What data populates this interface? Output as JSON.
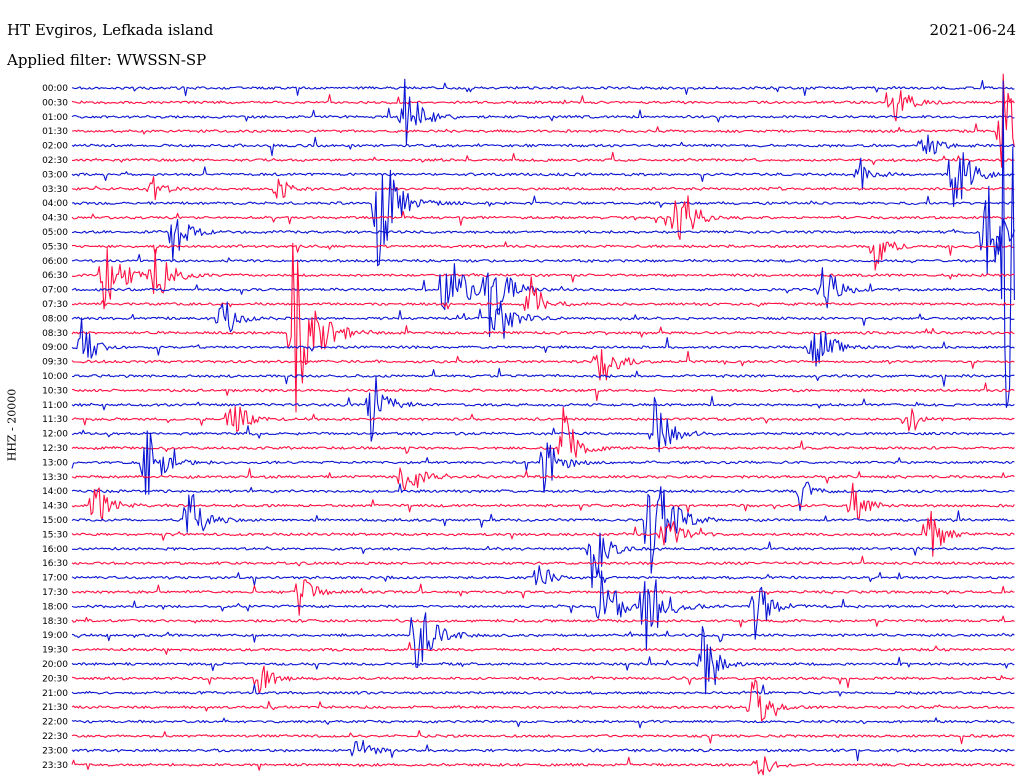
{
  "header": {
    "station": "HT Evgiros, Lefkada island",
    "date": "2021-06-24",
    "filter": "Applied filter: WWSSN-SP"
  },
  "colors": {
    "odd_trace": "#0a14d2",
    "even_trace": "#ff1042"
  },
  "chart_data": {
    "type": "line",
    "title": "HT Evgiros, Lefkada island",
    "ylabel": "HHZ - 20000",
    "xlabel": "",
    "rows": [
      "00:00",
      "00:30",
      "01:00",
      "01:30",
      "02:00",
      "02:30",
      "03:00",
      "03:30",
      "04:00",
      "04:30",
      "05:00",
      "05:30",
      "06:00",
      "06:30",
      "07:00",
      "07:30",
      "08:00",
      "08:30",
      "09:00",
      "09:30",
      "10:00",
      "10:30",
      "11:00",
      "11:30",
      "12:00",
      "12:30",
      "13:00",
      "13:30",
      "14:00",
      "14:30",
      "15:00",
      "15:30",
      "16:00",
      "16:30",
      "17:00",
      "17:30",
      "18:00",
      "18:30",
      "19:00",
      "19:30",
      "20:00",
      "20:30",
      "21:00",
      "21:30",
      "22:00",
      "22:30",
      "23:00",
      "23:30"
    ],
    "row_duration_minutes": 30,
    "series_colors": [
      "#0a14d2",
      "#ff1042"
    ],
    "events": [
      {
        "row": "00:30",
        "minute": 26.0,
        "amp": 0.8
      },
      {
        "row": "01:00",
        "minute": 10.5,
        "amp": 1.2
      },
      {
        "row": "01:30",
        "minute": 29.5,
        "amp": 1.8
      },
      {
        "row": "02:00",
        "minute": 27.0,
        "amp": 0.6
      },
      {
        "row": "03:00",
        "minute": 25.0,
        "amp": 0.5
      },
      {
        "row": "03:00",
        "minute": 28.0,
        "amp": 1.2
      },
      {
        "row": "03:30",
        "minute": 2.5,
        "amp": 0.4
      },
      {
        "row": "03:30",
        "minute": 6.5,
        "amp": 0.4
      },
      {
        "row": "04:00",
        "minute": 9.7,
        "amp": 1.8
      },
      {
        "row": "04:30",
        "minute": 19.2,
        "amp": 1.3
      },
      {
        "row": "05:00",
        "minute": 3.2,
        "amp": 0.8
      },
      {
        "row": "05:00",
        "minute": 29.0,
        "amp": 1.5
      },
      {
        "row": "05:30",
        "minute": 25.5,
        "amp": 0.6
      },
      {
        "row": "06:00",
        "minute": 29.5,
        "amp": 5.0
      },
      {
        "row": "06:30",
        "minute": 1.0,
        "amp": 1.3
      },
      {
        "row": "06:30",
        "minute": 2.5,
        "amp": 1.2
      },
      {
        "row": "07:00",
        "minute": 11.8,
        "amp": 1.5
      },
      {
        "row": "07:00",
        "minute": 13.2,
        "amp": 1.4
      },
      {
        "row": "07:00",
        "minute": 23.8,
        "amp": 1.0
      },
      {
        "row": "07:30",
        "minute": 14.5,
        "amp": 0.8
      },
      {
        "row": "08:00",
        "minute": 4.7,
        "amp": 0.8
      },
      {
        "row": "08:00",
        "minute": 13.5,
        "amp": 1.0
      },
      {
        "row": "08:30",
        "minute": 7.0,
        "amp": 2.5
      },
      {
        "row": "09:00",
        "minute": 0.3,
        "amp": 0.7
      },
      {
        "row": "09:00",
        "minute": 23.5,
        "amp": 1.2
      },
      {
        "row": "09:30",
        "minute": 16.7,
        "amp": 1.0
      },
      {
        "row": "11:00",
        "minute": 9.5,
        "amp": 1.0
      },
      {
        "row": "11:30",
        "minute": 5.0,
        "amp": 0.8
      },
      {
        "row": "11:30",
        "minute": 26.5,
        "amp": 0.6
      },
      {
        "row": "12:00",
        "minute": 18.5,
        "amp": 1.0
      },
      {
        "row": "12:30",
        "minute": 15.6,
        "amp": 1.0
      },
      {
        "row": "13:00",
        "minute": 2.3,
        "amp": 1.2
      },
      {
        "row": "13:00",
        "minute": 15.0,
        "amp": 0.9
      },
      {
        "row": "13:30",
        "minute": 10.5,
        "amp": 0.8
      },
      {
        "row": "14:00",
        "minute": 23.1,
        "amp": 0.5
      },
      {
        "row": "14:30",
        "minute": 0.7,
        "amp": 0.8
      },
      {
        "row": "14:30",
        "minute": 24.8,
        "amp": 0.6
      },
      {
        "row": "15:00",
        "minute": 3.7,
        "amp": 1.0
      },
      {
        "row": "15:00",
        "minute": 18.3,
        "amp": 2.0
      },
      {
        "row": "15:30",
        "minute": 18.8,
        "amp": 0.8
      },
      {
        "row": "15:30",
        "minute": 27.2,
        "amp": 0.8
      },
      {
        "row": "16:00",
        "minute": 16.5,
        "amp": 1.0
      },
      {
        "row": "17:00",
        "minute": 14.8,
        "amp": 0.5
      },
      {
        "row": "17:30",
        "minute": 7.2,
        "amp": 0.6
      },
      {
        "row": "18:00",
        "minute": 16.8,
        "amp": 1.2
      },
      {
        "row": "18:00",
        "minute": 18.2,
        "amp": 1.5
      },
      {
        "row": "18:00",
        "minute": 21.7,
        "amp": 0.9
      },
      {
        "row": "19:00",
        "minute": 10.9,
        "amp": 1.5
      },
      {
        "row": "20:00",
        "minute": 20.0,
        "amp": 1.0
      },
      {
        "row": "20:30",
        "minute": 5.9,
        "amp": 0.6
      },
      {
        "row": "21:30",
        "minute": 21.6,
        "amp": 0.9
      },
      {
        "row": "23:00",
        "minute": 9.0,
        "amp": 0.5
      },
      {
        "row": "23:30",
        "minute": 21.8,
        "amp": 0.5
      }
    ]
  }
}
